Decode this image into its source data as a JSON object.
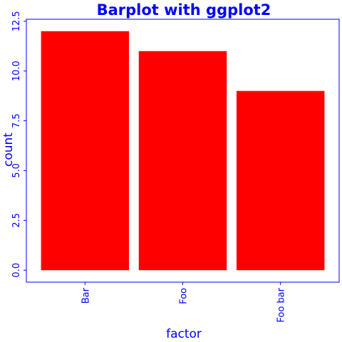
{
  "chart_data": {
    "type": "bar",
    "title": "Barplot with ggplot2",
    "xlabel": "factor",
    "ylabel": "count",
    "categories": [
      "Bar",
      "Foo",
      "Foo bar"
    ],
    "values": [
      12,
      11,
      9
    ],
    "ylim": [
      -0.6,
      12.6
    ],
    "yticks": [
      0,
      2.5,
      5,
      7.5,
      10,
      12.5
    ],
    "ytick_labels": [
      "0.0",
      "2.5",
      "5.0",
      "7.5",
      "10.0",
      "12.5"
    ],
    "grid": false,
    "legend": "none",
    "colors": {
      "bar": "#ff0000",
      "text": "#0000ff",
      "axis": "#0000ff",
      "background": "#ffffff"
    }
  }
}
